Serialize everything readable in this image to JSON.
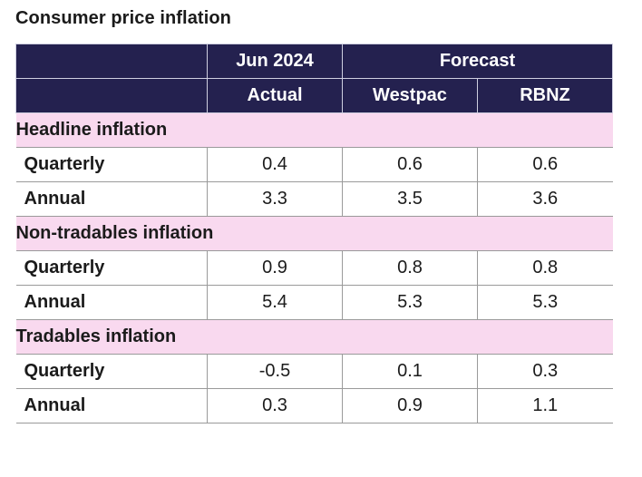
{
  "title": "Consumer price inflation",
  "header": {
    "top": {
      "col1": "Jun 2024",
      "forecast": "Forecast"
    },
    "sub": {
      "col1": "Actual",
      "col2": "Westpac",
      "col3": "RBNZ"
    }
  },
  "sections": [
    {
      "label": "Headline inflation",
      "rows": [
        {
          "label": "Quarterly",
          "actual": "0.4",
          "westpac": "0.6",
          "rbnz": "0.6"
        },
        {
          "label": "Annual",
          "actual": "3.3",
          "westpac": "3.5",
          "rbnz": "3.6"
        }
      ]
    },
    {
      "label": "Non-tradables inflation",
      "rows": [
        {
          "label": "Quarterly",
          "actual": "0.9",
          "westpac": "0.8",
          "rbnz": "0.8"
        },
        {
          "label": "Annual",
          "actual": "5.4",
          "westpac": "5.3",
          "rbnz": "5.3"
        }
      ]
    },
    {
      "label": "Tradables inflation",
      "rows": [
        {
          "label": "Quarterly",
          "actual": "-0.5",
          "westpac": "0.1",
          "rbnz": "0.3"
        },
        {
          "label": "Annual",
          "actual": "0.3",
          "westpac": "0.9",
          "rbnz": "1.1"
        }
      ]
    }
  ],
  "colors": {
    "header_bg": "#24214f",
    "header_text": "#ffffff",
    "section_bg": "#f9d9ef",
    "grid": "#9a9a9a"
  }
}
